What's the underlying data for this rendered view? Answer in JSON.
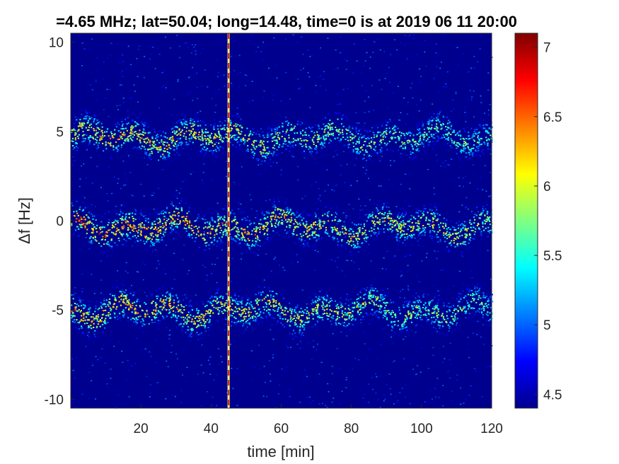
{
  "chart_data": {
    "type": "heatmap",
    "title": "=4.65 MHz;  lat=50.04; long=14.48, time=0 is at 2019 06 11 20:00",
    "xlabel": "time [min]",
    "ylabel": "Δf [Hz]",
    "xlim": [
      0,
      120
    ],
    "ylim": [
      -10.5,
      10.5
    ],
    "x_ticks": [
      20,
      40,
      60,
      80,
      100,
      120
    ],
    "x_tick_labels": [
      "20",
      "40",
      "60",
      "80",
      "100",
      "120"
    ],
    "y_ticks": [
      10,
      5,
      0,
      -5,
      -10
    ],
    "y_tick_labels": [
      "10",
      "5",
      "0",
      "-5",
      "-10"
    ],
    "colorbar": {
      "range": [
        4.4,
        7.1
      ],
      "ticks": [
        7,
        6.5,
        6,
        5.5,
        5,
        4.5
      ],
      "tick_labels": [
        "7",
        "6.5",
        "6",
        "5.5",
        "5",
        "4.5"
      ],
      "colormap": "jet"
    },
    "bands": [
      {
        "center_hz": 4.7,
        "intensity_left": 6.6,
        "intensity_right": 5.9
      },
      {
        "center_hz": -0.3,
        "intensity_left": 6.9,
        "intensity_right": 6.2
      },
      {
        "center_hz": -5.0,
        "intensity_left": 6.7,
        "intensity_right": 6.0
      }
    ],
    "vertical_line_time_min": 45,
    "background_level": 4.4,
    "grid": false
  }
}
